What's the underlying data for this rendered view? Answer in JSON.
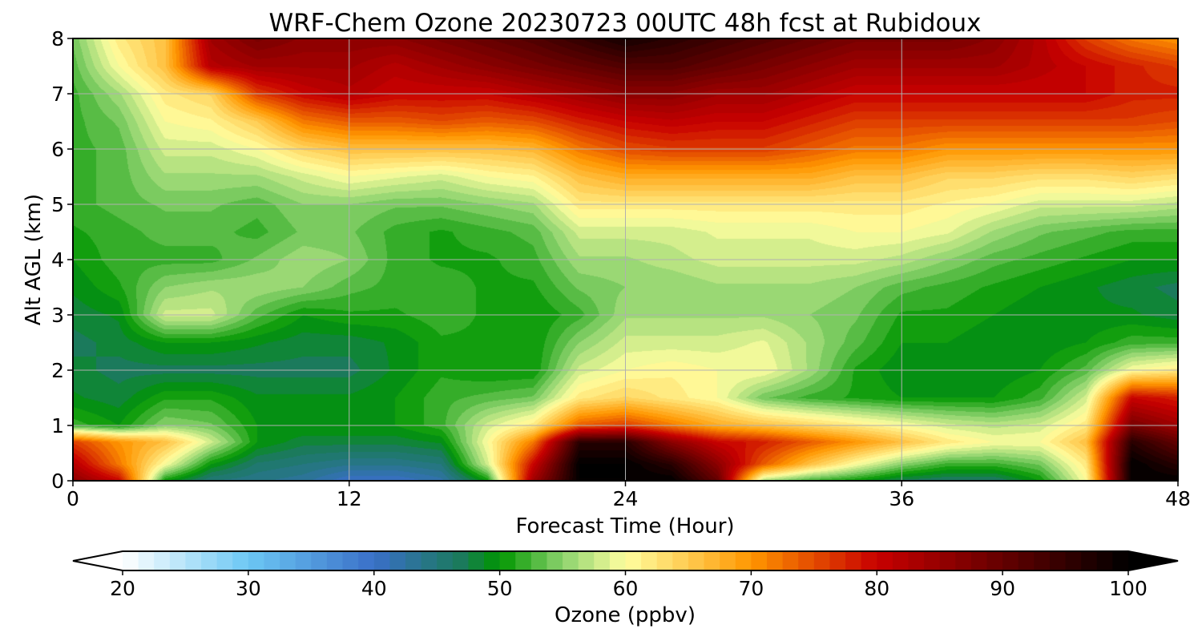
{
  "chart_data": {
    "type": "heatmap",
    "title": "WRF-Chem Ozone  20230723 00UTC 48h fcst at Rubidoux",
    "xlabel": "Forecast Time (Hour)",
    "ylabel": "Alt AGL (km)",
    "xlim": [
      0,
      48
    ],
    "ylim": [
      0,
      8
    ],
    "xticks": [
      0,
      12,
      24,
      36,
      48
    ],
    "yticks": [
      0,
      1,
      2,
      3,
      4,
      5,
      6,
      7,
      8
    ],
    "grid": true,
    "colorbar": {
      "label": "Ozone  (ppbv)",
      "range": [
        20,
        100
      ],
      "ticks": [
        20,
        30,
        40,
        50,
        60,
        70,
        80,
        90,
        100
      ],
      "extend": "both",
      "orientation": "horizontal",
      "colors": {
        "20": "#ffffff",
        "30": "#6cc8f4",
        "40": "#3a6fc8",
        "47": "#1a7a5a",
        "50": "#009600",
        "55": "#8cd26e",
        "60": "#ffffa0",
        "70": "#ff9600",
        "80": "#c80000",
        "90": "#640000",
        "100": "#000000"
      }
    },
    "y_levels_km": [
      0,
      0.3,
      0.7,
      1,
      1.5,
      2,
      2.5,
      3,
      3.5,
      4,
      4.5,
      5,
      5.5,
      6,
      6.5,
      7,
      7.5,
      8
    ],
    "profiles": [
      {
        "hour": 0,
        "values": [
          86,
          82,
          76,
          52,
          49,
          48,
          47,
          48,
          49,
          50,
          51,
          52,
          52,
          52,
          52,
          52,
          53,
          54
        ]
      },
      {
        "hour": 2,
        "values": [
          80,
          72,
          70,
          50,
          48,
          47,
          48,
          49,
          51,
          52,
          52,
          53,
          53,
          53,
          54,
          56,
          60,
          62
        ]
      },
      {
        "hour": 4,
        "values": [
          50,
          60,
          66,
          55,
          51,
          47,
          50,
          58,
          55,
          52,
          53,
          54,
          56,
          58,
          60,
          62,
          66,
          66
        ]
      },
      {
        "hour": 6,
        "values": [
          45,
          50,
          58,
          54,
          51,
          47,
          50,
          58,
          56,
          52,
          53,
          54,
          56,
          58,
          61,
          64,
          82,
          84
        ]
      },
      {
        "hour": 8,
        "values": [
          44,
          46,
          50,
          50,
          49,
          47,
          49,
          53,
          56,
          54,
          52,
          53,
          56,
          60,
          65,
          76,
          84,
          88
        ]
      },
      {
        "hour": 10,
        "values": [
          43,
          45,
          48,
          50,
          49,
          47,
          48,
          50,
          55,
          56,
          54,
          55,
          58,
          64,
          72,
          80,
          84,
          86
        ]
      },
      {
        "hour": 12,
        "values": [
          40,
          44,
          48,
          50,
          49,
          47,
          48,
          51,
          53,
          55,
          54,
          55,
          60,
          66,
          74,
          82,
          84,
          86
        ]
      },
      {
        "hour": 14,
        "values": [
          40,
          44,
          48,
          50,
          50,
          49,
          49,
          51,
          52,
          52,
          52,
          54,
          59,
          66,
          74,
          80,
          82,
          86
        ]
      },
      {
        "hour": 16,
        "values": [
          42,
          45,
          49,
          52,
          52,
          51,
          51,
          52,
          52,
          51,
          51,
          54,
          58,
          66,
          75,
          80,
          84,
          88
        ]
      },
      {
        "hour": 18,
        "values": [
          50,
          58,
          60,
          58,
          53,
          50,
          51,
          51,
          51,
          51,
          52,
          55,
          60,
          66,
          74,
          80,
          86,
          90
        ]
      },
      {
        "hour": 20,
        "values": [
          84,
          80,
          72,
          62,
          54,
          50,
          50,
          50,
          51,
          52,
          53,
          56,
          61,
          67,
          75,
          82,
          88,
          92
        ]
      },
      {
        "hour": 22,
        "values": [
          100,
          100,
          96,
          74,
          62,
          58,
          55,
          52,
          54,
          56,
          58,
          62,
          66,
          72,
          78,
          84,
          90,
          95
        ]
      },
      {
        "hour": 24,
        "values": [
          100,
          100,
          96,
          76,
          64,
          60,
          58,
          56,
          55,
          56,
          58,
          62,
          68,
          75,
          80,
          86,
          92,
          98
        ]
      },
      {
        "hour": 26,
        "values": [
          100,
          96,
          86,
          72,
          62,
          61,
          58,
          56,
          55,
          57,
          58,
          62,
          68,
          76,
          81,
          86,
          92,
          96
        ]
      },
      {
        "hour": 28,
        "values": [
          90,
          86,
          80,
          68,
          60,
          60,
          58,
          56,
          56,
          58,
          59,
          62,
          68,
          76,
          80,
          84,
          90,
          94
        ]
      },
      {
        "hour": 30,
        "values": [
          56,
          74,
          78,
          66,
          54,
          60,
          59,
          56,
          56,
          58,
          59,
          62,
          68,
          76,
          80,
          84,
          88,
          92
        ]
      },
      {
        "hour": 32,
        "values": [
          52,
          66,
          74,
          64,
          52,
          56,
          56,
          55,
          56,
          58,
          59,
          62,
          68,
          74,
          78,
          82,
          86,
          90
        ]
      },
      {
        "hour": 34,
        "values": [
          50,
          60,
          70,
          62,
          51,
          51,
          53,
          54,
          55,
          58,
          60,
          62,
          66,
          72,
          76,
          80,
          84,
          88
        ]
      },
      {
        "hour": 36,
        "values": [
          47,
          55,
          66,
          60,
          50,
          49,
          50,
          51,
          53,
          57,
          60,
          62,
          66,
          72,
          76,
          80,
          84,
          88
        ]
      },
      {
        "hour": 38,
        "values": [
          46,
          52,
          62,
          58,
          50,
          49,
          50,
          51,
          52,
          55,
          59,
          61,
          64,
          70,
          76,
          80,
          84,
          88
        ]
      },
      {
        "hour": 40,
        "values": [
          46,
          52,
          60,
          57,
          50,
          49,
          49,
          50,
          51,
          53,
          56,
          60,
          64,
          70,
          76,
          80,
          84,
          86
        ]
      },
      {
        "hour": 42,
        "values": [
          50,
          54,
          60,
          58,
          52,
          50,
          49,
          49,
          50,
          52,
          54,
          58,
          63,
          70,
          76,
          80,
          82,
          82
        ]
      },
      {
        "hour": 44,
        "values": [
          60,
          62,
          66,
          62,
          58,
          53,
          50,
          49,
          49,
          51,
          53,
          58,
          63,
          70,
          76,
          80,
          80,
          76
        ]
      },
      {
        "hour": 46,
        "values": [
          100,
          100,
          96,
          88,
          80,
          60,
          52,
          49,
          48,
          50,
          52,
          58,
          64,
          70,
          76,
          78,
          78,
          72
        ]
      },
      {
        "hour": 48,
        "values": [
          100,
          96,
          90,
          84,
          78,
          62,
          52,
          48,
          47,
          50,
          52,
          57,
          63,
          70,
          75,
          78,
          76,
          70
        ]
      }
    ]
  }
}
